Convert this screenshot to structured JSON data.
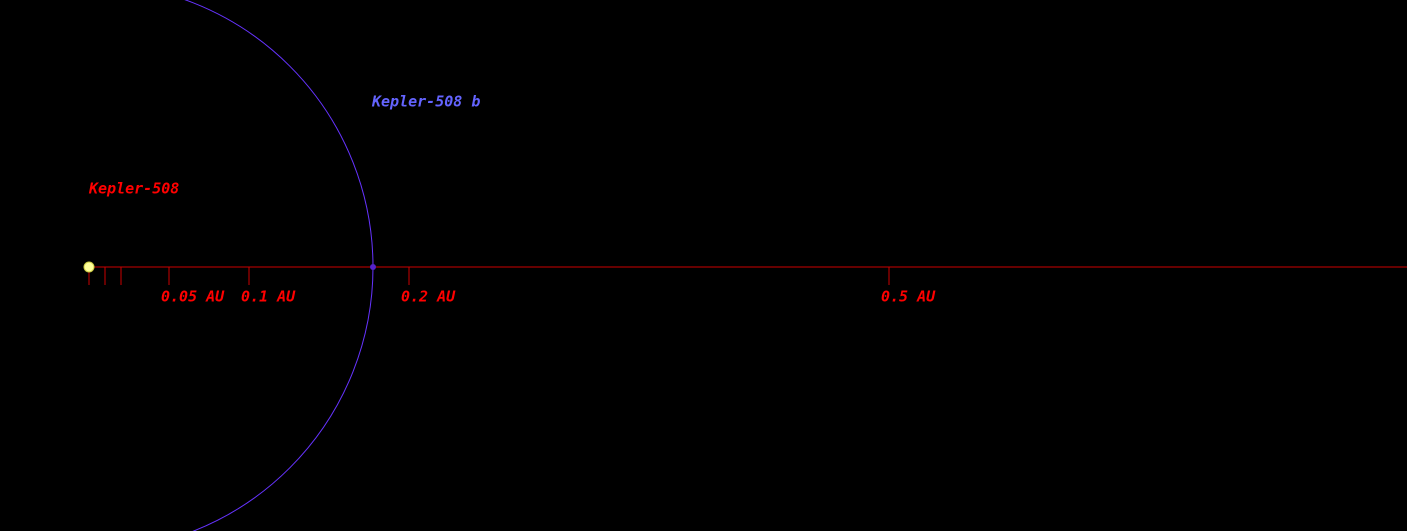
{
  "star": {
    "label": "Kepler-508"
  },
  "planet": {
    "label": "Kepler-508 b",
    "orbit_au": 0.1775
  },
  "scale": {
    "minor_ticks": [
      0,
      0.01,
      0.02
    ],
    "ticks": [
      {
        "value": 0.05,
        "label": "0.05 AU"
      },
      {
        "value": 0.1,
        "label": "0.1 AU"
      },
      {
        "value": 0.2,
        "label": "0.2 AU"
      },
      {
        "value": 0.5,
        "label": "0.5 AU"
      }
    ]
  }
}
